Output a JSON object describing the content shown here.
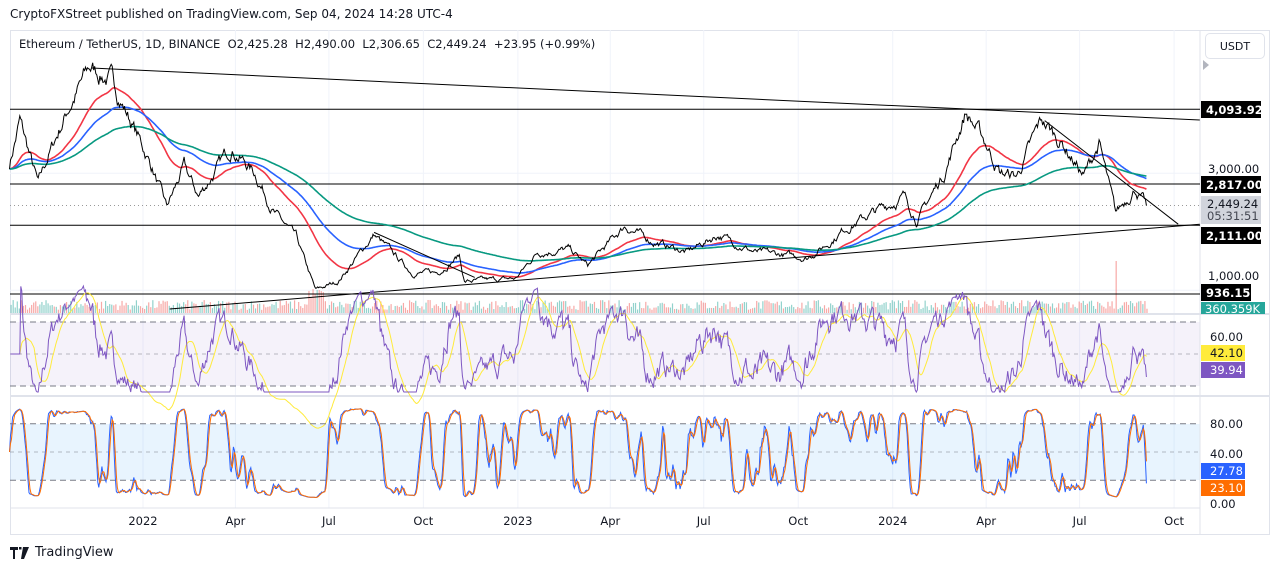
{
  "publisher_line": "CryptoFXStreet published on TradingView.com, Sep 04, 2024 14:28 UTC-4",
  "legend": {
    "symbol": "Ethereum / TetherUS, 1D, BINANCE",
    "open": "O2,425.28",
    "high": "H2,490.00",
    "low": "L2,306.65",
    "close": "C2,449.24",
    "change": "+23.95 (+0.99%)"
  },
  "currency_button": "USDT",
  "footer_brand": "TradingView",
  "colors": {
    "price": "#000000",
    "ma_red": "#f23645",
    "ma_blue": "#2962ff",
    "ma_green": "#089981",
    "rsi": "#7e57c2",
    "rsi_ma": "#ffeb3b",
    "stoch_k": "#2962ff",
    "stoch_d": "#ff6d00",
    "vol_up": "#26a69a",
    "vol_down": "#ef5350"
  },
  "chart_data": {
    "type": "line",
    "title": "Ethereum / TetherUS, 1D, BINANCE",
    "y_scale": "linear",
    "ylim": [
      660,
      4930
    ],
    "grid": true,
    "x_ticks": [
      "2022",
      "Apr",
      "Jul",
      "Oct",
      "2023",
      "Apr",
      "Jul",
      "Oct",
      "2024",
      "Apr",
      "Jul",
      "Oct"
    ],
    "x_tick_dates": [
      "2022-01-01",
      "2022-04-01",
      "2022-07-01",
      "2022-10-01",
      "2023-01-01",
      "2023-04-01",
      "2023-07-01",
      "2023-10-01",
      "2024-01-01",
      "2024-04-01",
      "2024-07-01",
      "2024-10-01"
    ],
    "y_tick_labels": [
      "3,000.00",
      "1,000.00"
    ],
    "y_ticks": [
      3000,
      1000
    ],
    "price_points": [
      [
        "2021-08-24",
        3150
      ],
      [
        "2021-09-03",
        3900
      ],
      [
        "2021-09-21",
        2800
      ],
      [
        "2021-10-01",
        3300
      ],
      [
        "2021-10-20",
        4100
      ],
      [
        "2021-11-10",
        4800
      ],
      [
        "2021-12-01",
        4600
      ],
      [
        "2021-12-20",
        3900
      ],
      [
        "2022-01-10",
        3100
      ],
      [
        "2022-01-24",
        2400
      ],
      [
        "2022-02-10",
        3100
      ],
      [
        "2022-02-24",
        2600
      ],
      [
        "2022-03-28",
        3450
      ],
      [
        "2022-04-20",
        3000
      ],
      [
        "2022-05-10",
        2300
      ],
      [
        "2022-05-30",
        1900
      ],
      [
        "2022-06-18",
        1000
      ],
      [
        "2022-07-10",
        1150
      ],
      [
        "2022-08-14",
        1950
      ],
      [
        "2022-09-06",
        1550
      ],
      [
        "2022-09-20",
        1300
      ],
      [
        "2022-10-15",
        1300
      ],
      [
        "2022-11-05",
        1600
      ],
      [
        "2022-11-10",
        1150
      ],
      [
        "2022-12-30",
        1200
      ],
      [
        "2023-01-20",
        1650
      ],
      [
        "2023-02-20",
        1700
      ],
      [
        "2023-03-10",
        1420
      ],
      [
        "2023-04-15",
        2100
      ],
      [
        "2023-05-10",
        1850
      ],
      [
        "2023-06-15",
        1650
      ],
      [
        "2023-07-15",
        1950
      ],
      [
        "2023-08-20",
        1650
      ],
      [
        "2023-10-10",
        1560
      ],
      [
        "2023-10-30",
        1800
      ],
      [
        "2023-11-15",
        2050
      ],
      [
        "2023-12-10",
        2300
      ],
      [
        "2024-01-12",
        2600
      ],
      [
        "2024-01-25",
        2200
      ],
      [
        "2024-02-20",
        3000
      ],
      [
        "2024-03-12",
        4050
      ],
      [
        "2024-04-01",
        3500
      ],
      [
        "2024-04-15",
        3000
      ],
      [
        "2024-05-01",
        2950
      ],
      [
        "2024-05-25",
        3900
      ],
      [
        "2024-06-15",
        3500
      ],
      [
        "2024-07-05",
        2950
      ],
      [
        "2024-07-20",
        3500
      ],
      [
        "2024-08-05",
        2300
      ],
      [
        "2024-08-24",
        2750
      ],
      [
        "2024-09-04",
        2449.24
      ]
    ],
    "moving_averages": [
      {
        "color": "#f23645",
        "length": 50
      },
      {
        "color": "#2962ff",
        "length": 100
      },
      {
        "color": "#089981",
        "length": 200
      }
    ],
    "horizontal_levels": [
      {
        "value": 4093.92,
        "label": "4,093.92"
      },
      {
        "value": 2817.0,
        "label": "2,817.00"
      },
      {
        "value": 2111.0,
        "label": "2,111.00"
      },
      {
        "value": 936.15,
        "label": "936.15"
      }
    ],
    "trendlines": [
      {
        "from": [
          "2021-11-12",
          4800
        ],
        "to": [
          "2024-10-26",
          3911
        ]
      },
      {
        "from": [
          "2022-01-27",
          680
        ],
        "to": [
          "2024-10-26",
          2130
        ]
      },
      {
        "from": [
          "2022-08-14",
          1990
        ],
        "to": [
          "2022-11-20",
          1220
        ]
      },
      {
        "from": [
          "2024-05-28",
          3900
        ],
        "to": [
          "2024-10-05",
          2130
        ]
      }
    ],
    "last_price": {
      "value": 2449.24,
      "label": "2,449.24",
      "countdown": "05:31:51"
    },
    "volume_last": "360.359K",
    "rsi": {
      "levels": [
        70,
        50,
        30
      ],
      "tick_labels": [
        "60.00"
      ],
      "ticks": [
        60
      ],
      "value": "39.94",
      "ma_value": "42.10"
    },
    "stochastic": {
      "levels": [
        80,
        50,
        20
      ],
      "tick_labels": [
        "80.00",
        "40.00",
        "0.00"
      ],
      "ticks": [
        80,
        40,
        0
      ],
      "k_value": "27.78",
      "d_value": "23.10"
    }
  }
}
